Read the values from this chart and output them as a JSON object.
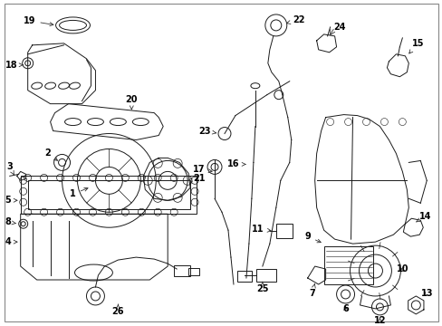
{
  "bg_color": "#ffffff",
  "line_color": "#1a1a1a",
  "label_color": "#000000",
  "arrow_color": "#333333",
  "figsize": [
    4.89,
    3.6
  ],
  "dpi": 100,
  "border_color": "#888888"
}
